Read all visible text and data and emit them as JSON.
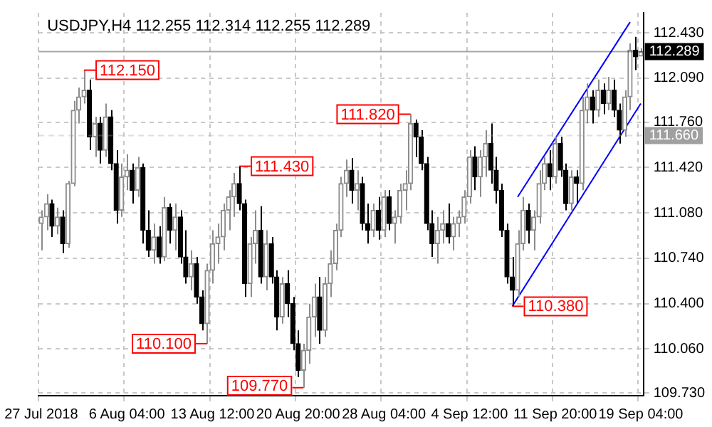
{
  "chart_data": {
    "type": "candlestick",
    "title": "USDJPY,H4 112.255 112.314 112.255 112.289",
    "colors": [
      "#8c8c8c",
      "#8c8c8c",
      "#000000",
      "#8c8c8c",
      "#000000",
      "#8c8c8c",
      "#8c8c8c",
      "#8c8c8c",
      "#8c8c8c",
      "#000000",
      "#8c8c8c",
      "#000000",
      "#8c8c8c",
      "#000000",
      "#000000",
      "#8c8c8c",
      "#8c8c8c",
      "#000000",
      "#8c8c8c",
      "#000000",
      "#000000",
      "#8c8c8c",
      "#000000",
      "#8c8c8c",
      "#000000",
      "#8c8c8c",
      "#000000",
      "#000000",
      "#8c8c8c",
      "#000000",
      "#000000",
      "#8c8c8c",
      "#8c8c8c",
      "#8c8c8c",
      "#8c8c8c",
      "#8c8c8c",
      "#8c8c8c",
      "#000000",
      "#000000",
      "#8c8c8c",
      "#8c8c8c",
      "#000000",
      "#8c8c8c",
      "#000000",
      "#000000",
      "#8c8c8c",
      "#000000",
      "#000000",
      "#000000",
      "#8c8c8c",
      "#8c8c8c",
      "#8c8c8c",
      "#000000",
      "#8c8c8c",
      "#8c8c8c",
      "#8c8c8c",
      "#8c8c8c",
      "#8c8c8c",
      "#000000",
      "#8c8c8c",
      "#000000",
      "#000000",
      "#8c8c8c",
      "#000000",
      "#8c8c8c",
      "#000000",
      "#8c8c8c",
      "#8c8c8c",
      "#8c8c8c",
      "#8c8c8c",
      "#000000",
      "#000000",
      "#000000",
      "#000000",
      "#8c8c8c",
      "#8c8c8c",
      "#000000",
      "#8c8c8c",
      "#8c8c8c",
      "#8c8c8c",
      "#8c8c8c",
      "#000000",
      "#8c8c8c",
      "#8c8c8c",
      "#000000",
      "#000000",
      "#000000",
      "#000000",
      "#000000",
      "#8c8c8c",
      "#8c8c8c",
      "#000000",
      "#8c8c8c",
      "#8c8c8c",
      "#8c8c8c",
      "#000000",
      "#8c8c8c",
      "#000000",
      "#000000",
      "#8c8c8c",
      "#000000",
      "#8c8c8c",
      "#8c8c8c",
      "#000000",
      "#8c8c8c",
      "#000000",
      "#8c8c8c",
      "#000000",
      "#000000",
      "#8c8c8c",
      "#8c8c8c",
      "#000000",
      "#8c8c8c"
    ],
    "categories": [
      "27 Jul 2018",
      null,
      null,
      null,
      null,
      null,
      null,
      null,
      null,
      null,
      null,
      null,
      null,
      null,
      null,
      null,
      "6 Aug 04:00",
      null,
      null,
      null,
      null,
      null,
      null,
      null,
      null,
      null,
      null,
      null,
      null,
      null,
      null,
      null,
      "13 Aug 12:00",
      null,
      null,
      null,
      null,
      null,
      null,
      null,
      null,
      null,
      null,
      null,
      null,
      null,
      null,
      null,
      "20 Aug 20:00",
      null,
      null,
      null,
      null,
      null,
      null,
      null,
      null,
      null,
      null,
      null,
      null,
      null,
      null,
      null,
      "28 Aug 04:00",
      null,
      null,
      null,
      null,
      null,
      null,
      null,
      null,
      null,
      null,
      null,
      null,
      null,
      null,
      null,
      "4 Sep 12:00",
      null,
      null,
      null,
      null,
      null,
      null,
      null,
      null,
      null,
      null,
      null,
      null,
      null,
      null,
      null,
      "11 Sep 20:00",
      null,
      null,
      null,
      null,
      null,
      null,
      null,
      null,
      null,
      null,
      null,
      null,
      null,
      null,
      null,
      "19 Sep 04:00"
    ],
    "ohlc": [
      [
        111.0,
        111.1,
        110.8,
        111.05
      ],
      [
        111.05,
        111.22,
        110.95,
        111.15
      ],
      [
        111.15,
        111.18,
        110.9,
        110.98
      ],
      [
        110.98,
        111.12,
        110.92,
        111.05
      ],
      [
        111.05,
        111.1,
        110.78,
        110.85
      ],
      [
        110.85,
        111.32,
        110.82,
        111.3
      ],
      [
        111.3,
        111.92,
        111.28,
        111.85
      ],
      [
        111.85,
        112.02,
        111.75,
        111.95
      ],
      [
        111.95,
        112.15,
        111.9,
        112.0
      ],
      [
        112.0,
        112.08,
        111.55,
        111.65
      ],
      [
        111.65,
        111.8,
        111.5,
        111.75
      ],
      [
        111.75,
        111.8,
        111.45,
        111.55
      ],
      [
        111.55,
        111.9,
        111.5,
        111.8
      ],
      [
        111.8,
        111.85,
        111.4,
        111.45
      ],
      [
        111.45,
        111.55,
        111.0,
        111.1
      ],
      [
        111.1,
        111.45,
        111.05,
        111.35
      ],
      [
        111.35,
        111.52,
        111.25,
        111.4
      ],
      [
        111.4,
        111.45,
        111.15,
        111.25
      ],
      [
        111.25,
        111.5,
        111.2,
        111.42
      ],
      [
        111.42,
        111.45,
        110.85,
        110.95
      ],
      [
        110.95,
        111.1,
        110.75,
        110.8
      ],
      [
        110.8,
        111.0,
        110.7,
        110.9
      ],
      [
        110.9,
        110.98,
        110.7,
        110.75
      ],
      [
        110.75,
        111.2,
        110.72,
        111.12
      ],
      [
        111.12,
        111.15,
        110.85,
        110.95
      ],
      [
        110.95,
        111.15,
        110.8,
        111.05
      ],
      [
        111.05,
        111.1,
        110.7,
        110.75
      ],
      [
        110.75,
        110.95,
        110.55,
        110.6
      ],
      [
        110.6,
        110.8,
        110.5,
        110.7
      ],
      [
        110.7,
        110.75,
        110.4,
        110.45
      ],
      [
        110.45,
        110.5,
        110.2,
        110.25
      ],
      [
        110.25,
        110.7,
        110.1,
        110.65
      ],
      [
        110.65,
        110.95,
        110.55,
        110.85
      ],
      [
        110.85,
        111.0,
        110.7,
        110.9
      ],
      [
        110.9,
        111.15,
        110.8,
        111.1
      ],
      [
        111.1,
        111.25,
        110.95,
        111.2
      ],
      [
        111.2,
        111.38,
        111.05,
        111.3
      ],
      [
        111.3,
        111.43,
        111.1,
        111.15
      ],
      [
        111.15,
        111.18,
        110.45,
        110.55
      ],
      [
        110.55,
        110.9,
        110.45,
        110.85
      ],
      [
        110.85,
        111.1,
        110.7,
        110.95
      ],
      [
        110.95,
        111.13,
        110.55,
        110.6
      ],
      [
        110.6,
        110.95,
        110.5,
        110.85
      ],
      [
        110.85,
        110.9,
        110.55,
        110.6
      ],
      [
        110.6,
        110.65,
        110.2,
        110.3
      ],
      [
        110.3,
        110.6,
        110.25,
        110.55
      ],
      [
        110.55,
        110.65,
        110.3,
        110.4
      ],
      [
        110.4,
        110.45,
        110.05,
        110.1
      ],
      [
        110.1,
        110.2,
        109.85,
        109.9
      ],
      [
        109.9,
        110.1,
        109.77,
        110.05
      ],
      [
        110.05,
        110.4,
        109.95,
        110.3
      ],
      [
        110.3,
        110.55,
        110.15,
        110.45
      ],
      [
        110.45,
        110.6,
        110.1,
        110.2
      ],
      [
        110.2,
        110.6,
        110.15,
        110.55
      ],
      [
        110.55,
        110.8,
        110.45,
        110.7
      ],
      [
        110.7,
        111.0,
        110.65,
        110.95
      ],
      [
        110.95,
        111.35,
        110.9,
        111.3
      ],
      [
        111.3,
        111.48,
        111.2,
        111.4
      ],
      [
        111.4,
        111.49,
        111.15,
        111.25
      ],
      [
        111.25,
        111.4,
        111.1,
        111.3
      ],
      [
        111.3,
        111.35,
        110.95,
        111.0
      ],
      [
        111.0,
        111.15,
        110.85,
        110.95
      ],
      [
        110.95,
        111.15,
        110.9,
        111.1
      ],
      [
        111.1,
        111.2,
        110.88,
        110.95
      ],
      [
        110.95,
        111.25,
        110.9,
        111.2
      ],
      [
        111.2,
        111.25,
        110.95,
        111.0
      ],
      [
        111.0,
        111.1,
        110.85,
        111.05
      ],
      [
        111.05,
        111.3,
        111.0,
        111.25
      ],
      [
        111.25,
        111.4,
        111.1,
        111.3
      ],
      [
        111.3,
        111.82,
        111.25,
        111.75
      ],
      [
        111.75,
        111.78,
        111.5,
        111.65
      ],
      [
        111.65,
        111.7,
        111.4,
        111.45
      ],
      [
        111.45,
        111.5,
        110.95,
        111.0
      ],
      [
        111.0,
        111.1,
        110.75,
        110.85
      ],
      [
        110.85,
        111.05,
        110.7,
        110.95
      ],
      [
        110.95,
        111.1,
        110.85,
        111.0
      ],
      [
        111.0,
        111.15,
        110.85,
        110.9
      ],
      [
        110.9,
        111.05,
        110.8,
        111.0
      ],
      [
        111.0,
        111.1,
        110.9,
        111.05
      ],
      [
        111.05,
        111.25,
        111.0,
        111.2
      ],
      [
        111.2,
        111.55,
        111.15,
        111.5
      ],
      [
        111.5,
        111.58,
        111.25,
        111.35
      ],
      [
        111.35,
        111.55,
        111.2,
        111.5
      ],
      [
        111.5,
        111.7,
        111.35,
        111.6
      ],
      [
        111.6,
        111.75,
        111.3,
        111.4
      ],
      [
        111.4,
        111.5,
        111.15,
        111.25
      ],
      [
        111.25,
        111.3,
        110.9,
        110.95
      ],
      [
        110.95,
        111.0,
        110.55,
        110.6
      ],
      [
        110.6,
        110.75,
        110.38,
        110.5
      ],
      [
        110.5,
        110.95,
        110.45,
        110.85
      ],
      [
        110.85,
        111.2,
        110.8,
        111.1
      ],
      [
        111.1,
        111.15,
        110.85,
        110.95
      ],
      [
        110.95,
        111.1,
        110.8,
        111.05
      ],
      [
        111.05,
        111.4,
        111.0,
        111.3
      ],
      [
        111.3,
        111.5,
        111.25,
        111.45
      ],
      [
        111.45,
        111.55,
        111.25,
        111.35
      ],
      [
        111.35,
        111.65,
        111.3,
        111.6
      ],
      [
        111.6,
        111.65,
        111.35,
        111.4
      ],
      [
        111.4,
        111.45,
        111.1,
        111.15
      ],
      [
        111.15,
        111.4,
        111.1,
        111.35
      ],
      [
        111.35,
        111.4,
        111.15,
        111.3
      ],
      [
        111.3,
        111.95,
        111.25,
        111.85
      ],
      [
        111.85,
        112.05,
        111.75,
        111.95
      ],
      [
        111.95,
        112.0,
        111.75,
        111.85
      ],
      [
        111.85,
        112.08,
        111.8,
        112.0
      ],
      [
        112.0,
        112.05,
        111.82,
        111.9
      ],
      [
        111.9,
        112.1,
        111.85,
        112.0
      ],
      [
        112.0,
        112.08,
        111.8,
        111.85
      ],
      [
        111.85,
        111.9,
        111.6,
        111.7
      ],
      [
        111.7,
        112.0,
        111.65,
        111.95
      ],
      [
        111.95,
        112.35,
        111.85,
        112.3
      ],
      [
        112.3,
        112.4,
        112.15,
        112.25
      ],
      [
        112.255,
        112.314,
        112.255,
        112.289
      ]
    ],
    "series": [
      {
        "type": "line",
        "color": "#0000ff",
        "values": [
          null,
          null,
          null,
          null,
          null,
          null,
          null,
          null,
          null,
          null,
          null,
          null,
          null,
          null,
          null,
          null,
          null,
          null,
          null,
          null,
          null,
          null,
          null,
          null,
          null,
          null,
          null,
          null,
          null,
          null,
          null,
          null,
          null,
          null,
          null,
          null,
          null,
          null,
          null,
          null,
          null,
          null,
          null,
          null,
          null,
          null,
          null,
          null,
          null,
          null,
          null,
          null,
          null,
          null,
          null,
          null,
          null,
          null,
          null,
          null,
          null,
          null,
          null,
          null,
          null,
          null,
          null,
          null,
          null,
          null,
          null,
          null,
          null,
          null,
          null,
          null,
          null,
          null,
          null,
          null,
          null,
          null,
          null,
          null,
          null,
          null,
          null,
          null,
          null,
          111.2,
          null,
          null,
          null,
          null,
          null,
          null,
          null,
          null,
          null,
          null,
          null,
          null,
          null,
          null,
          null,
          null,
          null,
          null,
          null,
          null,
          112.51,
          null,
          null
        ]
      },
      {
        "type": "line",
        "color": "#0000ff",
        "values": [
          null,
          null,
          null,
          null,
          null,
          null,
          null,
          null,
          null,
          null,
          null,
          null,
          null,
          null,
          null,
          null,
          null,
          null,
          null,
          null,
          null,
          null,
          null,
          null,
          null,
          null,
          null,
          null,
          null,
          null,
          null,
          null,
          null,
          null,
          null,
          null,
          null,
          null,
          null,
          null,
          null,
          null,
          null,
          null,
          null,
          null,
          null,
          null,
          null,
          null,
          null,
          null,
          null,
          null,
          null,
          null,
          null,
          null,
          null,
          null,
          null,
          null,
          null,
          null,
          null,
          null,
          null,
          null,
          null,
          null,
          null,
          null,
          null,
          null,
          null,
          null,
          null,
          null,
          null,
          null,
          null,
          null,
          null,
          null,
          null,
          null,
          null,
          null,
          110.38,
          null,
          null,
          null,
          null,
          null,
          null,
          null,
          null,
          null,
          null,
          null,
          null,
          null,
          null,
          null,
          null,
          null,
          null,
          null,
          null,
          null,
          null,
          null,
          111.9
        ]
      }
    ],
    "ylim": [
      109.71,
      112.58
    ],
    "yticks": [
      {
        "value": 109.73,
        "label": "109.730"
      },
      {
        "value": 110.06,
        "label": "110.060"
      },
      {
        "value": 110.4,
        "label": "110.400"
      },
      {
        "value": 110.74,
        "label": "110.740"
      },
      {
        "value": 111.08,
        "label": "111.080"
      },
      {
        "value": 111.42,
        "label": "111.420"
      },
      {
        "value": 111.76,
        "label": "111.760"
      },
      {
        "value": 112.09,
        "label": "112.090"
      },
      {
        "value": 112.43,
        "label": "112.430"
      }
    ],
    "grid": true,
    "ref_lines": [
      {
        "axis": "y",
        "value": 112.289,
        "label": "112.289",
        "color": "#000000",
        "line_style": "solid"
      },
      {
        "axis": "y",
        "value": 111.66,
        "label": "111.660",
        "color": "#a0a0a0",
        "line_style": "dashed"
      }
    ],
    "annotations": [
      "112.150",
      "111.430",
      "111.820",
      "110.100",
      "109.770",
      "110.380"
    ]
  }
}
